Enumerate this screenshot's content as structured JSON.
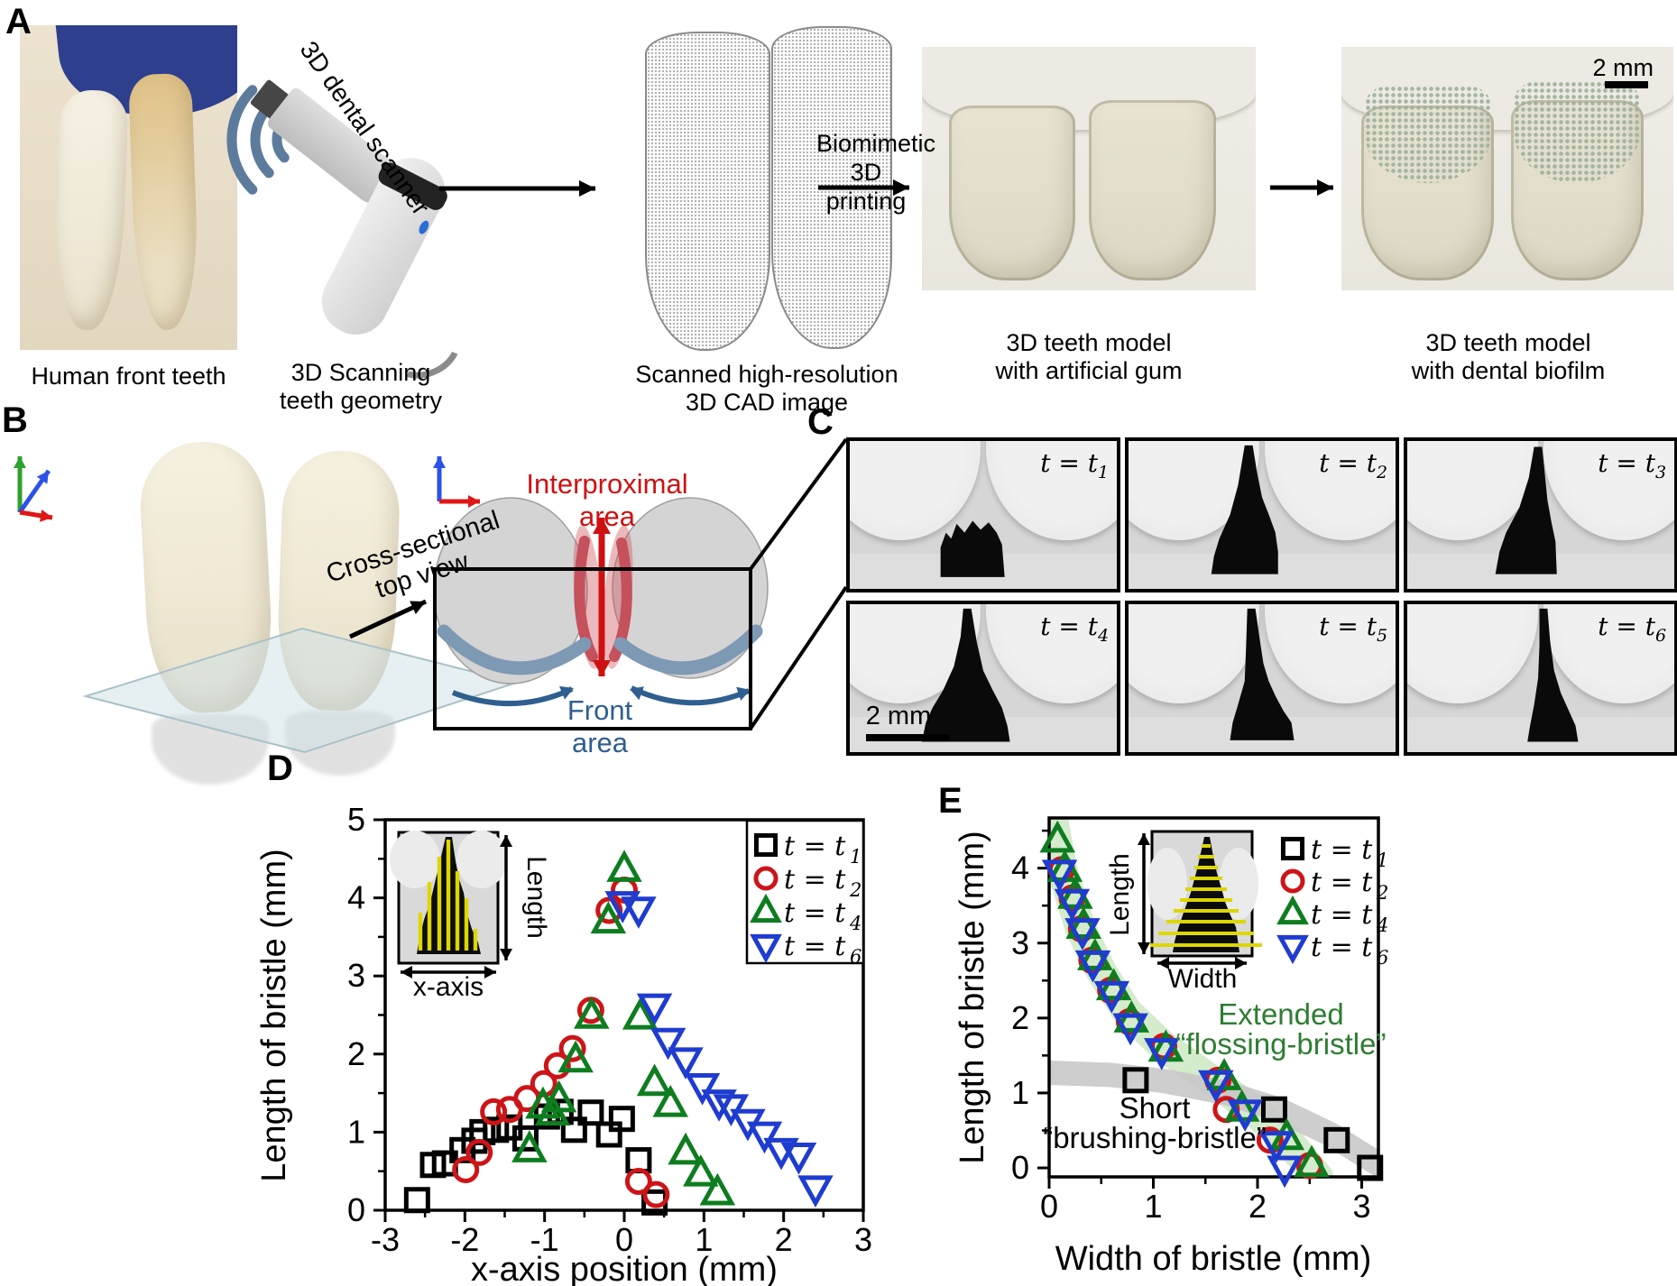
{
  "colors": {
    "black": "#000000",
    "red": "#cc1518",
    "green": "#0e7d1f",
    "blue": "#1f3cd0",
    "green_text": "#2e7d32",
    "band_green": "#a9d79a",
    "band_gray": "#c6c6c6",
    "steel_blue": "#2e5f8f",
    "bright_red": "#cf1010"
  },
  "panel_a": {
    "label": "A",
    "caption_teeth": "Human front teeth",
    "caption_scan_1": "3D Scanning",
    "caption_scan_2": "teeth geometry",
    "caption_cad_1": "Scanned high-resolution",
    "caption_cad_2": "3D CAD image",
    "caption_gum_1": "3D teeth model",
    "caption_gum_2": "with artificial gum",
    "caption_biofilm_1": "3D teeth model",
    "caption_biofilm_2": "with dental biofilm",
    "scanner_label": "3D dental scanner",
    "arrow_label_1": "Biomimetic",
    "arrow_label_2": "3D printing",
    "scalebar": "2 mm"
  },
  "panel_b": {
    "label": "B",
    "crosssec_1": "Cross-sectional",
    "crosssec_2": "top view",
    "interproximal": "Interproximal area",
    "front": "Front area"
  },
  "panel_c": {
    "label": "C",
    "scalebar": "2 mm",
    "frames": [
      {
        "t_prefix": "t = t",
        "t_sub": "1"
      },
      {
        "t_prefix": "t = t",
        "t_sub": "2"
      },
      {
        "t_prefix": "t = t",
        "t_sub": "3"
      },
      {
        "t_prefix": "t = t",
        "t_sub": "4"
      },
      {
        "t_prefix": "t = t",
        "t_sub": "5"
      },
      {
        "t_prefix": "t = t",
        "t_sub": "6"
      }
    ]
  },
  "panel_d": {
    "label": "D",
    "inset": {
      "length": "Length",
      "xaxis": "x-axis"
    }
  },
  "panel_e": {
    "label": "E",
    "inset": {
      "length": "Length",
      "width": "Width"
    }
  },
  "chart_data": [
    {
      "id": "D",
      "type": "scatter",
      "xlabel": "x-axis position (mm)",
      "ylabel": "Length of bristle (mm)",
      "xlim": [
        -3,
        3
      ],
      "ylim": [
        0,
        5
      ],
      "xticks": [
        -3,
        -2,
        -1,
        0,
        1,
        2,
        3
      ],
      "yticks": [
        0,
        1,
        2,
        3,
        4,
        5
      ],
      "legend_position": "top-right-boxed",
      "grid": false,
      "series": [
        {
          "label_prefix": "t = t",
          "label_sub": "1",
          "marker": "square",
          "color": "#000000",
          "points": [
            [
              -2.6,
              0.13
            ],
            [
              -2.4,
              0.58
            ],
            [
              -2.25,
              0.6
            ],
            [
              -2.03,
              0.77
            ],
            [
              -1.88,
              0.89
            ],
            [
              -1.78,
              1.0
            ],
            [
              -1.61,
              1.03
            ],
            [
              -1.44,
              1.06
            ],
            [
              -1.24,
              0.92
            ],
            [
              -0.97,
              1.2
            ],
            [
              -0.8,
              1.26
            ],
            [
              -0.63,
              1.03
            ],
            [
              -0.42,
              1.25
            ],
            [
              -0.19,
              0.97
            ],
            [
              -0.03,
              1.17
            ],
            [
              0.18,
              0.64
            ],
            [
              0.38,
              0.1
            ]
          ]
        },
        {
          "label_prefix": "t = t",
          "label_sub": "2",
          "marker": "circle",
          "color": "#cc1518",
          "points": [
            [
              -1.99,
              0.52
            ],
            [
              -1.82,
              0.74
            ],
            [
              -1.64,
              1.26
            ],
            [
              -1.44,
              1.29
            ],
            [
              -1.22,
              1.43
            ],
            [
              -1.01,
              1.62
            ],
            [
              -0.84,
              1.85
            ],
            [
              -0.65,
              2.07
            ],
            [
              -0.42,
              2.56
            ],
            [
              -0.19,
              3.84
            ],
            [
              0.0,
              4.1
            ],
            [
              0.18,
              0.37
            ],
            [
              0.4,
              0.2
            ]
          ]
        },
        {
          "label_prefix": "t = t",
          "label_sub": "4",
          "marker": "triangle-up",
          "color": "#0e7d1f",
          "points": [
            [
              -1.19,
              0.77
            ],
            [
              -1.02,
              1.33
            ],
            [
              -0.9,
              1.24
            ],
            [
              -0.82,
              1.41
            ],
            [
              -0.61,
              1.92
            ],
            [
              -0.41,
              2.48
            ],
            [
              -0.2,
              3.7
            ],
            [
              0.0,
              4.36
            ],
            [
              0.2,
              2.47
            ],
            [
              0.38,
              1.62
            ],
            [
              0.58,
              1.35
            ],
            [
              0.77,
              0.74
            ],
            [
              0.96,
              0.46
            ],
            [
              1.17,
              0.22
            ]
          ]
        },
        {
          "label_prefix": "t = t",
          "label_sub": "6",
          "marker": "triangle-down",
          "color": "#1f3cd0",
          "points": [
            [
              -0.02,
              3.93
            ],
            [
              0.18,
              3.86
            ],
            [
              0.38,
              2.62
            ],
            [
              0.55,
              2.18
            ],
            [
              0.77,
              1.93
            ],
            [
              0.98,
              1.6
            ],
            [
              1.19,
              1.39
            ],
            [
              1.34,
              1.33
            ],
            [
              1.55,
              1.14
            ],
            [
              1.76,
              0.98
            ],
            [
              1.97,
              0.77
            ],
            [
              2.19,
              0.71
            ],
            [
              2.4,
              0.29
            ]
          ]
        }
      ]
    },
    {
      "id": "E",
      "type": "scatter",
      "xlabel": "Width of bristle (mm)",
      "ylabel": "Length of bristle (mm)",
      "xlim": [
        0,
        3.16
      ],
      "ylim": [
        -0.12,
        4.67
      ],
      "xticks": [
        0,
        1,
        2,
        3
      ],
      "yticks": [
        0,
        1,
        2,
        3,
        4
      ],
      "legend_position": "top-right",
      "grid": false,
      "series": [
        {
          "label_prefix": "t = t",
          "label_sub": "1",
          "marker": "square",
          "color": "#000000",
          "points": [
            [
              0.83,
              1.17
            ],
            [
              2.16,
              0.78
            ],
            [
              2.76,
              0.37
            ],
            [
              3.08,
              0.0
            ]
          ]
        },
        {
          "label_prefix": "t = t",
          "label_sub": "2",
          "marker": "circle",
          "color": "#cc1518",
          "points": [
            [
              0.12,
              3.98
            ],
            [
              0.22,
              3.6
            ],
            [
              0.31,
              3.19
            ],
            [
              0.41,
              2.77
            ],
            [
              0.59,
              2.37
            ],
            [
              0.77,
              1.95
            ],
            [
              1.1,
              1.62
            ],
            [
              1.62,
              1.17
            ],
            [
              1.7,
              0.78
            ],
            [
              2.12,
              0.37
            ],
            [
              2.5,
              0.03
            ]
          ]
        },
        {
          "label_prefix": "t = t",
          "label_sub": "4",
          "marker": "triangle-up",
          "color": "#0e7d1f",
          "points": [
            [
              0.08,
              4.37
            ],
            [
              0.15,
              3.98
            ],
            [
              0.25,
              3.62
            ],
            [
              0.33,
              3.22
            ],
            [
              0.44,
              2.8
            ],
            [
              0.62,
              2.4
            ],
            [
              0.79,
              1.97
            ],
            [
              1.12,
              1.58
            ],
            [
              1.68,
              1.2
            ],
            [
              1.85,
              0.78
            ],
            [
              2.28,
              0.4
            ],
            [
              2.52,
              0.04
            ]
          ]
        },
        {
          "label_prefix": "t = t",
          "label_sub": "6",
          "marker": "triangle-down",
          "color": "#1f3cd0",
          "points": [
            [
              0.1,
              3.95
            ],
            [
              0.22,
              3.56
            ],
            [
              0.32,
              3.17
            ],
            [
              0.42,
              2.74
            ],
            [
              0.6,
              2.33
            ],
            [
              0.78,
              1.9
            ],
            [
              1.08,
              1.57
            ],
            [
              1.6,
              1.14
            ],
            [
              1.88,
              0.75
            ],
            [
              2.18,
              0.33
            ],
            [
              2.26,
              0.0
            ]
          ]
        }
      ],
      "bands": [
        {
          "name": "flossing-band",
          "color": "#a9d79a",
          "opacity": 0.5,
          "width": 34,
          "points": [
            [
              0.03,
              4.7
            ],
            [
              0.12,
              4.0
            ],
            [
              0.3,
              3.2
            ],
            [
              0.5,
              2.62
            ],
            [
              0.75,
              2.08
            ],
            [
              1.1,
              1.62
            ],
            [
              1.55,
              1.18
            ],
            [
              1.95,
              0.78
            ],
            [
              2.3,
              0.35
            ],
            [
              2.58,
              -0.12
            ]
          ]
        },
        {
          "name": "brushing-band",
          "color": "#c6c6c6",
          "opacity": 0.85,
          "width": 27,
          "points": [
            [
              0.0,
              1.27
            ],
            [
              0.6,
              1.24
            ],
            [
              1.1,
              1.16
            ],
            [
              1.7,
              1.0
            ],
            [
              2.2,
              0.78
            ],
            [
              2.7,
              0.45
            ],
            [
              3.16,
              0.05
            ]
          ]
        }
      ],
      "annotations": [
        {
          "lines": [
            "Extended",
            "“flossing-bristle”"
          ],
          "color": "#2e7d32",
          "x": 1420,
          "y": 1136
        },
        {
          "lines": [
            "Short",
            "“brushing-bristle”"
          ],
          "color": "#000000",
          "x": 1280,
          "y": 1240
        }
      ]
    }
  ]
}
